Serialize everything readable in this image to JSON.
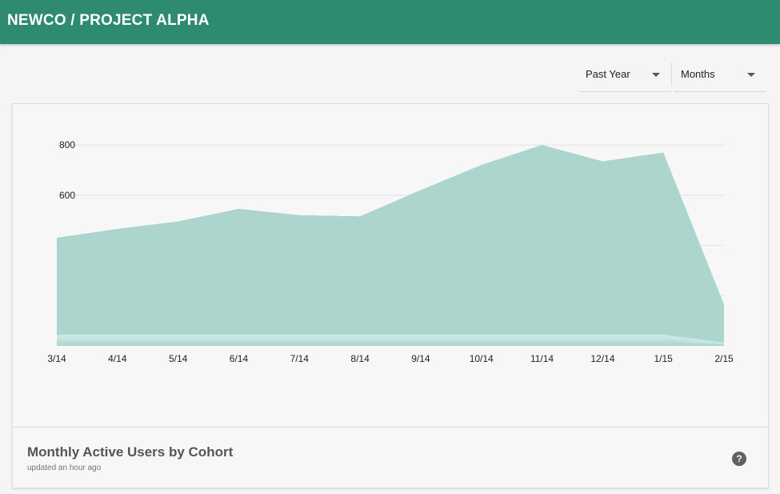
{
  "header": {
    "title": "NEWCO / PROJECT ALPHA"
  },
  "filters": {
    "range": {
      "value": "Past Year",
      "icon": "arrow-drop-down-icon"
    },
    "unit": {
      "value": "Months",
      "icon": "arrow-drop-down-icon"
    }
  },
  "card": {
    "title": "Monthly Active Users by Cohort",
    "subtitle": "updated an hour ago",
    "help_icon": "help-circle-icon",
    "help_glyph": "?"
  },
  "chart_data": {
    "type": "area",
    "stacked": true,
    "categories": [
      "3/14",
      "4/14",
      "5/14",
      "6/14",
      "7/14",
      "8/14",
      "9/14",
      "10/14",
      "11/14",
      "12/14",
      "1/15",
      "2/15"
    ],
    "y_ticks": [
      200,
      400,
      600,
      800
    ],
    "ylim": [
      0,
      850
    ],
    "grid": true,
    "legend": "none",
    "totals": [
      430,
      465,
      495,
      545,
      520,
      515,
      620,
      720,
      800,
      735,
      770,
      165
    ],
    "colors": {
      "low": "#d4f3ef",
      "high": "#2f7a66"
    }
  }
}
